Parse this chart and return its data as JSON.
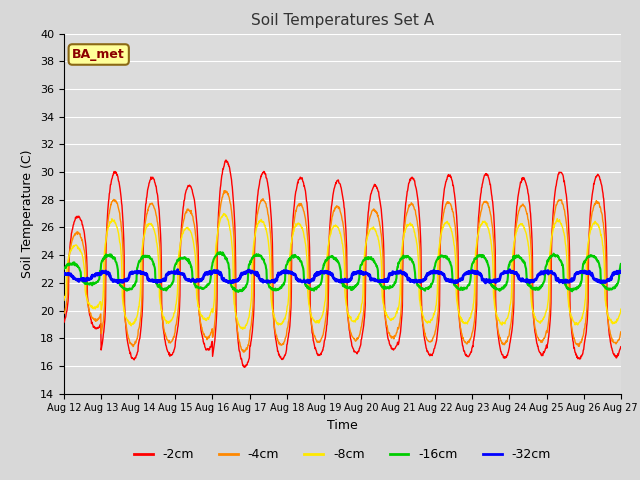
{
  "title": "Soil Temperatures Set A",
  "xlabel": "Time",
  "ylabel": "Soil Temperature (C)",
  "ylim": [
    14,
    40
  ],
  "yticks": [
    14,
    16,
    18,
    20,
    22,
    24,
    26,
    28,
    30,
    32,
    34,
    36,
    38,
    40
  ],
  "n_days": 15,
  "n_points": 1500,
  "series": [
    {
      "label": "-2cm",
      "color": "#FF0000",
      "lw": 1.0,
      "mean": 22.0,
      "amp_day": 8.0,
      "amp_night": 5.5,
      "phase_hr": 3.0,
      "slowdown": 0.0
    },
    {
      "label": "-4cm",
      "color": "#FF8800",
      "lw": 1.0,
      "mean": 22.0,
      "amp_day": 6.0,
      "amp_night": 4.5,
      "phase_hr": 3.5,
      "slowdown": 0.0
    },
    {
      "label": "-8cm",
      "color": "#FFE800",
      "lw": 1.0,
      "mean": 22.0,
      "amp_day": 4.5,
      "amp_night": 3.0,
      "phase_hr": 4.5,
      "slowdown": 0.0
    },
    {
      "label": "-16cm",
      "color": "#00CC00",
      "lw": 1.5,
      "mean": 22.5,
      "amp_day": 1.5,
      "amp_night": 1.0,
      "phase_hr": 7.0,
      "slowdown": 0.0
    },
    {
      "label": "-32cm",
      "color": "#0000FF",
      "lw": 2.0,
      "mean": 22.4,
      "amp_day": 0.4,
      "amp_night": 0.3,
      "phase_hr": 12.0,
      "slowdown": 0.0
    }
  ],
  "legend_labels": [
    "-2cm",
    "-4cm",
    "-8cm",
    "-16cm",
    "-32cm"
  ],
  "legend_colors": [
    "#FF0000",
    "#FF8800",
    "#FFE800",
    "#00CC00",
    "#0000FF"
  ],
  "annotation_text": "BA_met",
  "tick_label_dates": [
    "Aug 12",
    "Aug 13",
    "Aug 14",
    "Aug 15",
    "Aug 16",
    "Aug 17",
    "Aug 18",
    "Aug 19",
    "Aug 20",
    "Aug 21",
    "Aug 22",
    "Aug 23",
    "Aug 24",
    "Aug 25",
    "Aug 26",
    "Aug 27"
  ],
  "plot_bg_color": "#DCDCDC",
  "fig_bg_color": "#D8D8D8",
  "grid_color": "#FFFFFF"
}
